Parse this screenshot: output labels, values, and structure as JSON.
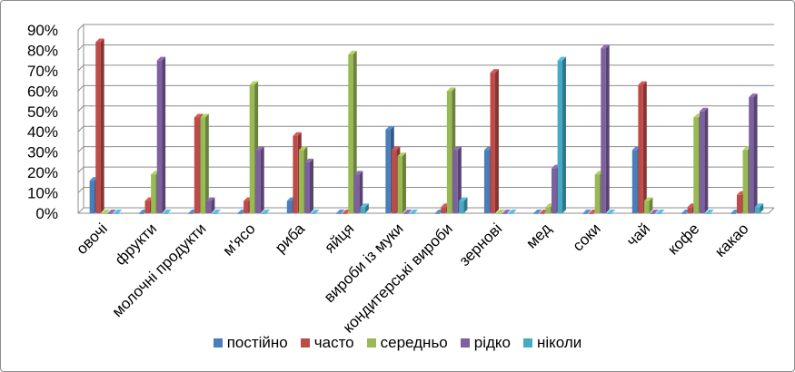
{
  "chart_data": {
    "type": "bar",
    "title": "",
    "xlabel": "",
    "ylabel": "",
    "ylim": [
      0,
      90
    ],
    "yticks": [
      "0%",
      "10%",
      "20%",
      "30%",
      "40%",
      "50%",
      "60%",
      "70%",
      "80%",
      "90%"
    ],
    "grid": true,
    "legend_position": "bottom",
    "categories": [
      "овочі",
      "фрукти",
      "молочні продукти",
      "м'ясо",
      "риба",
      "яйця",
      "вироби із муки",
      "кондитерські вироби",
      "зернові",
      "мед",
      "соки",
      "чай",
      "кофе",
      "какао"
    ],
    "series": [
      {
        "name": "постійно",
        "color": "#4a7ebb",
        "values": [
          16,
          0,
          0,
          0,
          6,
          0,
          41,
          0,
          31,
          0,
          0,
          31,
          0,
          0
        ]
      },
      {
        "name": "часто",
        "color": "#be4b48",
        "values": [
          84,
          6,
          47,
          6,
          38,
          0,
          31,
          3,
          69,
          0,
          0,
          63,
          3,
          9
        ]
      },
      {
        "name": "середньо",
        "color": "#98b954",
        "values": [
          0,
          19,
          47,
          63,
          31,
          78,
          28,
          60,
          0,
          3,
          19,
          6,
          47,
          31
        ]
      },
      {
        "name": "рідко",
        "color": "#7d60a0",
        "values": [
          0,
          75,
          6,
          31,
          25,
          19,
          0,
          31,
          0,
          22,
          81,
          0,
          50,
          57
        ]
      },
      {
        "name": "ніколи",
        "color": "#46aac5",
        "values": [
          0,
          0,
          0,
          0,
          0,
          3,
          0,
          6,
          0,
          75,
          0,
          0,
          0,
          3
        ]
      }
    ]
  }
}
